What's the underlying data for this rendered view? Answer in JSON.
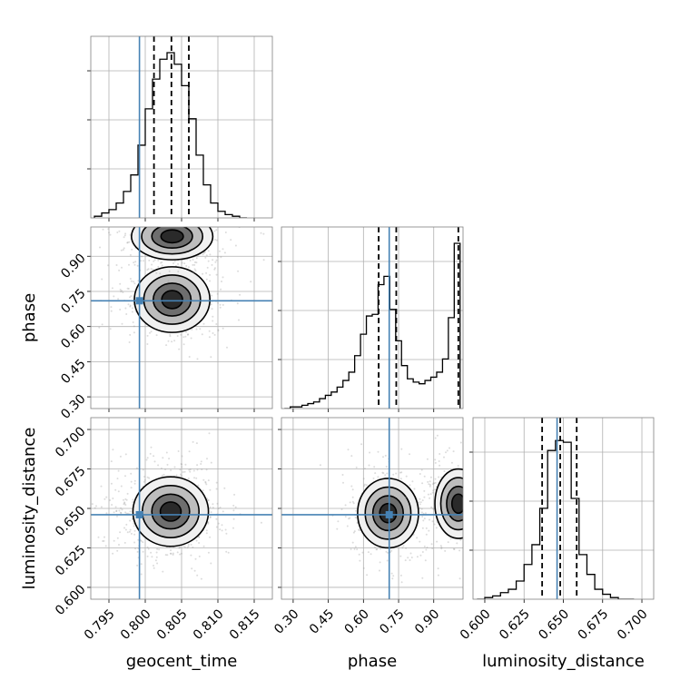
{
  "chart_data": {
    "type": "corner",
    "parameters": [
      {
        "name": "geocent_time",
        "label": "geocent_time",
        "ticks": [
          "0.795",
          "0.800",
          "0.805",
          "0.810",
          "0.815"
        ],
        "range": [
          0.7925,
          0.8175
        ],
        "truth": 0.7992
      },
      {
        "name": "phase",
        "label": "phase",
        "ticks": [
          "0.30",
          "0.45",
          "0.60",
          "0.75",
          "0.90"
        ],
        "range": [
          0.25,
          1.025
        ],
        "truth": 0.71
      },
      {
        "name": "luminosity_distance",
        "label": "luminosity_distance",
        "ticks": [
          "0.600",
          "0.625",
          "0.650",
          "0.675",
          "0.700"
        ],
        "range": [
          0.5925,
          0.7075
        ],
        "truth": 0.646
      }
    ],
    "grid": true,
    "truth_color": "#4682b4",
    "marginals": [
      {
        "parameter": "geocent_time",
        "x": [
          0.7935,
          0.7945,
          0.7955,
          0.7965,
          0.7975,
          0.7985,
          0.7995,
          0.8005,
          0.8015,
          0.8025,
          0.8035,
          0.8045,
          0.8055,
          0.8065,
          0.8075,
          0.8085,
          0.8095,
          0.8105,
          0.8115,
          0.8125,
          0.8135
        ],
        "density": [
          0.01,
          0.03,
          0.05,
          0.09,
          0.16,
          0.26,
          0.44,
          0.66,
          0.84,
          0.96,
          1.0,
          0.93,
          0.8,
          0.6,
          0.38,
          0.2,
          0.09,
          0.04,
          0.02,
          0.01,
          0.0
        ],
        "quantiles": [
          0.8012,
          0.8036,
          0.806
        ]
      },
      {
        "parameter": "phase",
        "x": [
          0.275,
          0.3,
          0.325,
          0.35,
          0.375,
          0.4,
          0.425,
          0.45,
          0.475,
          0.5,
          0.525,
          0.55,
          0.575,
          0.6,
          0.625,
          0.65,
          0.675,
          0.7,
          0.725,
          0.75,
          0.775,
          0.8,
          0.825,
          0.85,
          0.875,
          0.9,
          0.925,
          0.95,
          0.975,
          1.0
        ],
        "density": [
          0.0,
          0.01,
          0.01,
          0.02,
          0.03,
          0.04,
          0.06,
          0.08,
          0.1,
          0.13,
          0.17,
          0.22,
          0.32,
          0.45,
          0.56,
          0.57,
          0.75,
          0.8,
          0.6,
          0.41,
          0.26,
          0.18,
          0.16,
          0.15,
          0.17,
          0.19,
          0.22,
          0.3,
          0.55,
          1.0
        ],
        "quantiles": [
          0.665,
          0.74,
          1.005
        ]
      },
      {
        "parameter": "luminosity_distance",
        "x": [
          0.5975,
          0.6025,
          0.6075,
          0.6125,
          0.6175,
          0.6225,
          0.6275,
          0.6325,
          0.6375,
          0.6425,
          0.6475,
          0.6525,
          0.6575,
          0.6625,
          0.6675,
          0.6725,
          0.6775,
          0.6825,
          0.6875,
          0.6925
        ],
        "density": [
          0.0,
          0.01,
          0.02,
          0.04,
          0.06,
          0.11,
          0.21,
          0.33,
          0.55,
          0.9,
          0.96,
          0.95,
          0.61,
          0.27,
          0.15,
          0.06,
          0.03,
          0.01,
          0.0,
          0.0
        ],
        "quantiles": [
          0.6365,
          0.648,
          0.6585
        ]
      }
    ],
    "joint_modes": [
      {
        "x_param": "geocent_time",
        "y_param": "phase",
        "modes": [
          {
            "x": 0.8037,
            "y": 0.715,
            "sx": 0.0026,
            "sy": 0.07,
            "weight": 0.55
          },
          {
            "x": 0.8037,
            "y": 0.985,
            "sx": 0.0028,
            "sy": 0.05,
            "weight": 0.45
          }
        ]
      },
      {
        "x_param": "geocent_time",
        "y_param": "luminosity_distance",
        "modes": [
          {
            "x": 0.8035,
            "y": 0.648,
            "sx": 0.0026,
            "sy": 0.011,
            "weight": 1.0
          }
        ]
      },
      {
        "x_param": "phase",
        "y_param": "luminosity_distance",
        "modes": [
          {
            "x": 0.705,
            "y": 0.647,
            "sx": 0.065,
            "sy": 0.011,
            "weight": 0.55
          },
          {
            "x": 1.005,
            "y": 0.653,
            "sx": 0.05,
            "sy": 0.011,
            "weight": 0.45
          }
        ]
      }
    ]
  }
}
